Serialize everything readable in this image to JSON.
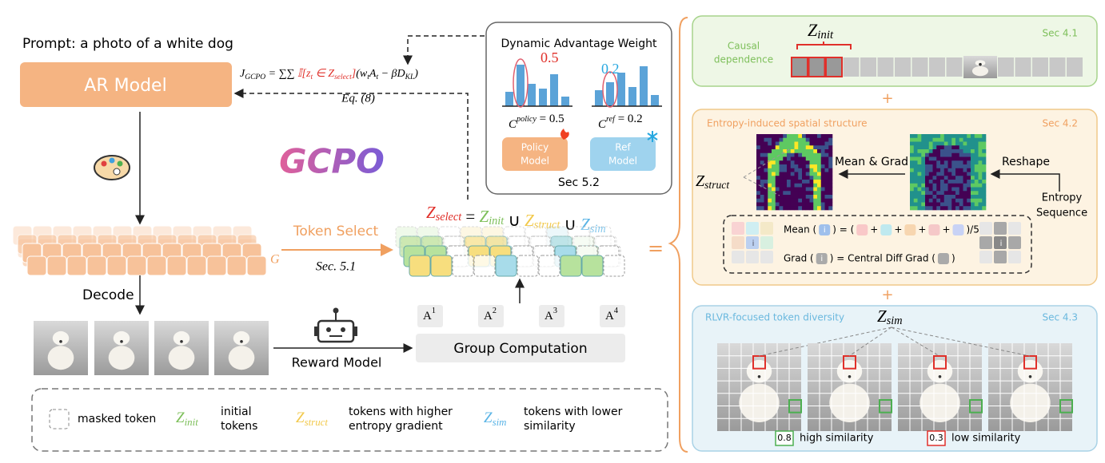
{
  "prompt": "Prompt: a photo of a white dog",
  "ar_model": "AR Model",
  "objective": {
    "j": "J",
    "j_sub": "GCPO",
    "sums": " = ∑∑ ",
    "ind": "𝕀[z",
    "z_sub": "t",
    "in": " ∈ Z",
    "sel_sub": "select",
    "close": "]",
    "w": "(w",
    "w_sub": "t",
    "a": "A",
    "a_sub": "t",
    "kl": " − βD",
    "kl_sub": "KL",
    "end": ")",
    "eq_ref": "Eq. (8)"
  },
  "logo": "GCPO",
  "decode": "Decode",
  "group_label": "G",
  "token_select": {
    "label": "Token Select",
    "section": "Sec. 5.1"
  },
  "z_select": {
    "terms": [
      {
        "symbol": "Z",
        "sub": "select"
      },
      {
        "symbol": "Z",
        "sub": "init"
      },
      {
        "symbol": "Z",
        "sub": "struct"
      },
      {
        "symbol": "Z",
        "sub": "sim"
      }
    ],
    "ops": [
      " = ",
      " ∪ ",
      " ∪ "
    ]
  },
  "equals": "=",
  "advantages": [
    {
      "symbol": "A",
      "sup": "1"
    },
    {
      "symbol": "A",
      "sup": "2"
    },
    {
      "symbol": "A",
      "sup": "3"
    },
    {
      "symbol": "A",
      "sup": "4"
    }
  ],
  "group_computation": "Group Computation",
  "reward_model": "Reward Model",
  "dynamic_weight": {
    "title": "Dynamic Advantage Weight",
    "policy_value": "0.5",
    "ref_value": "0.2",
    "policy_coef": {
      "symbol": "C",
      "sup": "policy",
      "rest": " = 0.5"
    },
    "ref_coef": {
      "symbol": "C",
      "sup": "ref",
      "rest": " = 0.2"
    },
    "policy_model": [
      "Policy",
      "Model"
    ],
    "ref_model": [
      "Ref",
      "Model"
    ],
    "section": "Sec 5.2"
  },
  "legend": {
    "masked": "masked token",
    "init": {
      "symbol": "Z",
      "sub": "init",
      "desc": [
        "initial",
        "tokens"
      ]
    },
    "struct": {
      "symbol": "Z",
      "sub": "struct",
      "desc": [
        "tokens with higher",
        "entropy gradient"
      ]
    },
    "sim": {
      "symbol": "Z",
      "sub": "sim",
      "desc": [
        "tokens with lower",
        "similarity"
      ]
    }
  },
  "sec41": {
    "title": [
      "Causal",
      "dependence"
    ],
    "z": {
      "symbol": "Z",
      "sub": "init"
    },
    "section": "Sec 4.1"
  },
  "plus": [
    "+",
    "+"
  ],
  "sec42": {
    "title": "Entropy-induced spatial structure",
    "section": "Sec 4.2",
    "z": {
      "symbol": "Z",
      "sub": "struct"
    },
    "mean_grad": "Mean & Grad",
    "reshape": "Reshape",
    "entropy_seq": [
      "Entropy",
      "Sequence"
    ],
    "mean": {
      "prefix": "Mean (",
      "icon": "i",
      "mid": ") = (",
      "pluses": [
        "+",
        "+",
        "+",
        "+"
      ],
      "suffix": ")/5"
    },
    "grad": {
      "prefix": "Grad (",
      "icon": "i",
      "mid": ") = Central Diff Grad (",
      "suffix": ")"
    },
    "grid_icon": [
      "i",
      "i"
    ]
  },
  "sec43": {
    "title": "RLVR-focused token diversity",
    "section": "Sec 4.3",
    "z": {
      "symbol": "Z",
      "sub": "sim"
    },
    "high_value": "0.8",
    "high_label": "high similarity",
    "low_value": "0.3",
    "low_label": "low similarity"
  }
}
